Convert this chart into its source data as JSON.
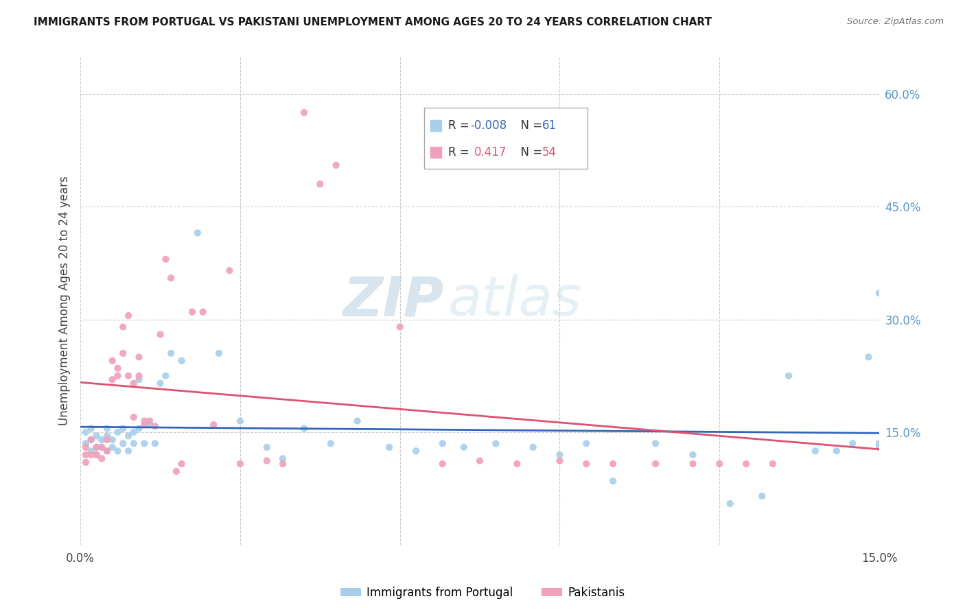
{
  "title": "IMMIGRANTS FROM PORTUGAL VS PAKISTANI UNEMPLOYMENT AMONG AGES 20 TO 24 YEARS CORRELATION CHART",
  "source": "Source: ZipAtlas.com",
  "ylabel": "Unemployment Among Ages 20 to 24 years",
  "xlim": [
    0.0,
    0.15
  ],
  "ylim": [
    0.0,
    0.65
  ],
  "color_blue": "#a8cfe8",
  "color_pink": "#f0a0b8",
  "color_blue_line": "#3366bb",
  "color_pink_line": "#e05070",
  "watermark_zip": "ZIP",
  "watermark_atlas": "atlas",
  "blue_x": [
    0.001,
    0.001,
    0.002,
    0.002,
    0.002,
    0.003,
    0.003,
    0.003,
    0.004,
    0.004,
    0.005,
    0.005,
    0.005,
    0.006,
    0.006,
    0.007,
    0.007,
    0.008,
    0.008,
    0.009,
    0.009,
    0.01,
    0.01,
    0.011,
    0.011,
    0.012,
    0.013,
    0.014,
    0.015,
    0.016,
    0.017,
    0.019,
    0.022,
    0.026,
    0.03,
    0.035,
    0.038,
    0.042,
    0.047,
    0.052,
    0.058,
    0.063,
    0.068,
    0.072,
    0.078,
    0.085,
    0.09,
    0.095,
    0.1,
    0.108,
    0.115,
    0.122,
    0.128,
    0.133,
    0.138,
    0.142,
    0.145,
    0.148,
    0.15,
    0.15,
    0.15
  ],
  "blue_y": [
    0.135,
    0.15,
    0.125,
    0.14,
    0.155,
    0.13,
    0.145,
    0.12,
    0.14,
    0.13,
    0.145,
    0.125,
    0.155,
    0.14,
    0.13,
    0.15,
    0.125,
    0.155,
    0.135,
    0.145,
    0.125,
    0.15,
    0.135,
    0.155,
    0.22,
    0.135,
    0.16,
    0.135,
    0.215,
    0.225,
    0.255,
    0.245,
    0.415,
    0.255,
    0.165,
    0.13,
    0.115,
    0.155,
    0.135,
    0.165,
    0.13,
    0.125,
    0.135,
    0.13,
    0.135,
    0.13,
    0.12,
    0.135,
    0.085,
    0.135,
    0.12,
    0.055,
    0.065,
    0.225,
    0.125,
    0.125,
    0.135,
    0.25,
    0.13,
    0.135,
    0.335
  ],
  "pink_x": [
    0.001,
    0.001,
    0.001,
    0.002,
    0.002,
    0.003,
    0.003,
    0.004,
    0.004,
    0.005,
    0.005,
    0.006,
    0.006,
    0.007,
    0.007,
    0.008,
    0.008,
    0.009,
    0.009,
    0.01,
    0.01,
    0.011,
    0.011,
    0.012,
    0.012,
    0.013,
    0.014,
    0.015,
    0.016,
    0.017,
    0.018,
    0.019,
    0.021,
    0.023,
    0.025,
    0.028,
    0.03,
    0.035,
    0.038,
    0.042,
    0.045,
    0.048,
    0.06,
    0.068,
    0.075,
    0.082,
    0.09,
    0.095,
    0.1,
    0.108,
    0.115,
    0.12,
    0.125,
    0.13
  ],
  "pink_y": [
    0.11,
    0.12,
    0.13,
    0.14,
    0.12,
    0.13,
    0.12,
    0.13,
    0.115,
    0.14,
    0.125,
    0.22,
    0.245,
    0.225,
    0.235,
    0.29,
    0.255,
    0.305,
    0.225,
    0.215,
    0.17,
    0.25,
    0.225,
    0.165,
    0.16,
    0.165,
    0.158,
    0.28,
    0.38,
    0.355,
    0.098,
    0.108,
    0.31,
    0.31,
    0.16,
    0.365,
    0.108,
    0.112,
    0.108,
    0.575,
    0.48,
    0.505,
    0.29,
    0.108,
    0.112,
    0.108,
    0.112,
    0.108,
    0.108,
    0.108,
    0.108,
    0.108,
    0.108,
    0.108
  ]
}
